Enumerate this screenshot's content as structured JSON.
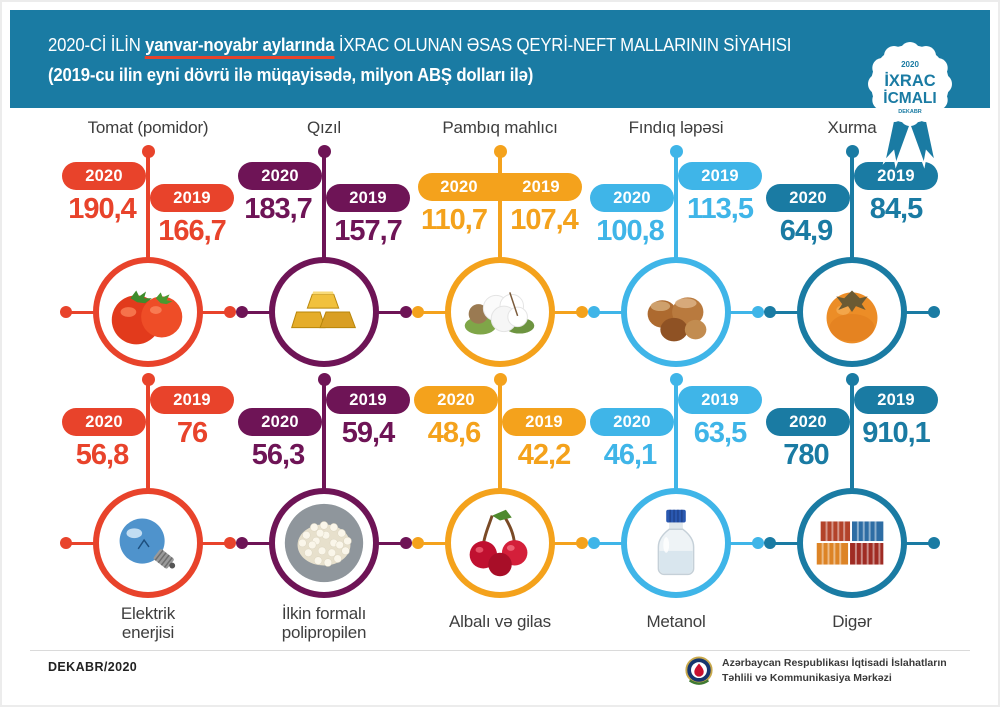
{
  "header": {
    "title_prefix": "2020-Cİ İLİN",
    "title_highlight": "yanvar-noyabr aylarında",
    "title_suffix": "İXRAC OLUNAN ƏSAS QEYRİ-NEFT MALLARININ SİYAHISI",
    "subtitle": "(2019-cu ilin eyni dövrü ilə müqayisədə, milyon ABŞ dolları ilə)",
    "background_color": "#1a7ba3",
    "highlight_underline_color": "#e8432b"
  },
  "badge": {
    "year": "2020",
    "line1": "İXRAC",
    "line2": "İCMALI",
    "month": "DEKABR",
    "color": "#1a7ba3"
  },
  "years": {
    "y2020": "2020",
    "y2019": "2019"
  },
  "items": [
    {
      "label": [
        "Tomat (pomidor)"
      ],
      "value_2020": "190,4",
      "value_2019": "166,7",
      "color": "#e8432b",
      "icon": "tomato-icon",
      "layout": "2020-up"
    },
    {
      "label": [
        "Qızıl"
      ],
      "value_2020": "183,7",
      "value_2019": "157,7",
      "color": "#6e1456",
      "icon": "gold-icon",
      "layout": "2020-up"
    },
    {
      "label": [
        "Pambıq mahlıcı"
      ],
      "value_2020": "110,7",
      "value_2019": "107,4",
      "color": "#f4a21c",
      "icon": "cotton-icon",
      "layout": "level"
    },
    {
      "label": [
        "Fındıq ləpəsi"
      ],
      "value_2020": "100,8",
      "value_2019": "113,5",
      "color": "#3fb5e8",
      "icon": "hazelnut-icon",
      "layout": "2019-up"
    },
    {
      "label": [
        "Xurma"
      ],
      "value_2020": "64,9",
      "value_2019": "84,5",
      "color": "#1a7ba3",
      "icon": "persimmon-icon",
      "layout": "2019-up"
    },
    {
      "label": [
        "Elektrik",
        "enerjisi"
      ],
      "value_2020": "56,8",
      "value_2019": "76",
      "color": "#e8432b",
      "icon": "lightbulb-icon",
      "layout": "2019-up"
    },
    {
      "label": [
        "İlkin formalı",
        "polipropilen"
      ],
      "value_2020": "56,3",
      "value_2019": "59,4",
      "color": "#6e1456",
      "icon": "polypropylene-icon",
      "layout": "2019-up"
    },
    {
      "label": [
        "Albalı və gilas"
      ],
      "value_2020": "48,6",
      "value_2019": "42,2",
      "color": "#f4a21c",
      "icon": "cherry-icon",
      "layout": "2020-up"
    },
    {
      "label": [
        "Metanol"
      ],
      "value_2020": "46,1",
      "value_2019": "63,5",
      "color": "#3fb5e8",
      "icon": "methanol-bottle-icon",
      "layout": "2019-up"
    },
    {
      "label": [
        "Digər"
      ],
      "value_2020": "780",
      "value_2019": "910,1",
      "color": "#1a7ba3",
      "icon": "containers-icon",
      "layout": "2019-up"
    }
  ],
  "footer": {
    "date": "DEKABR/2020",
    "org_line1": "Azərbaycan Respublikası İqtisadi İslahatların",
    "org_line2": "Təhlili və Kommunikasiya Mərkəzi"
  },
  "chart_data": {
    "type": "table",
    "title": "2020-ci ilin yanvar-noyabr aylarında ixrac olunan əsas qeyri-neft mallarının siyahısı",
    "subtitle": "2019-cu ilin eyni dövrü ilə müqayisədə, milyon ABŞ dolları ilə",
    "categories": [
      "Tomat (pomidor)",
      "Qızıl",
      "Pambıq mahlıcı",
      "Fındıq ləpəsi",
      "Xurma",
      "Elektrik enerjisi",
      "İlkin formalı polipropilen",
      "Albalı və gilas",
      "Metanol",
      "Digər"
    ],
    "series": [
      {
        "name": "2020",
        "values": [
          190.4,
          183.7,
          110.7,
          100.8,
          64.9,
          56.8,
          56.3,
          48.6,
          46.1,
          780
        ]
      },
      {
        "name": "2019",
        "values": [
          166.7,
          157.7,
          107.4,
          113.5,
          84.5,
          76,
          59.4,
          42.2,
          63.5,
          910.1
        ]
      }
    ],
    "unit": "milyon ABŞ dolları"
  }
}
